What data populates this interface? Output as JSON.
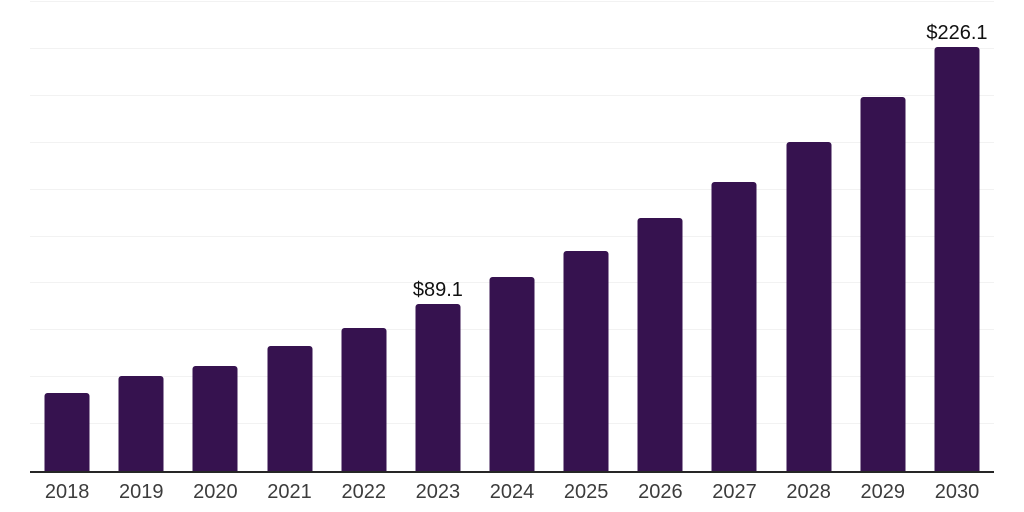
{
  "chart_data": {
    "type": "bar",
    "title": "",
    "xlabel": "",
    "ylabel": "",
    "categories": [
      "2018",
      "2019",
      "2020",
      "2021",
      "2022",
      "2023",
      "2024",
      "2025",
      "2026",
      "2027",
      "2028",
      "2029",
      "2030"
    ],
    "values": [
      41.7,
      50.4,
      55.8,
      66.4,
      76.5,
      89.1,
      103.4,
      117.5,
      134.8,
      154.1,
      175.4,
      199.3,
      226.1
    ],
    "data_labels": [
      "",
      "",
      "",
      "",
      "",
      "$89.1",
      "",
      "",
      "",
      "",
      "",
      "",
      "$226.1"
    ],
    "ylim": [
      0,
      250
    ],
    "gridline_step": 25,
    "grid": "horizontal",
    "y_axis_labels_shown": false,
    "legend_position": "none",
    "currency_prefix": "$"
  },
  "style": {
    "background_color": "#ffffff",
    "bar_color": "#36124f",
    "gridline_color": "#f2f2f2",
    "axis_line_color": "#262626",
    "tick_label_color": "#3c3c3c",
    "data_label_color": "#111111"
  }
}
